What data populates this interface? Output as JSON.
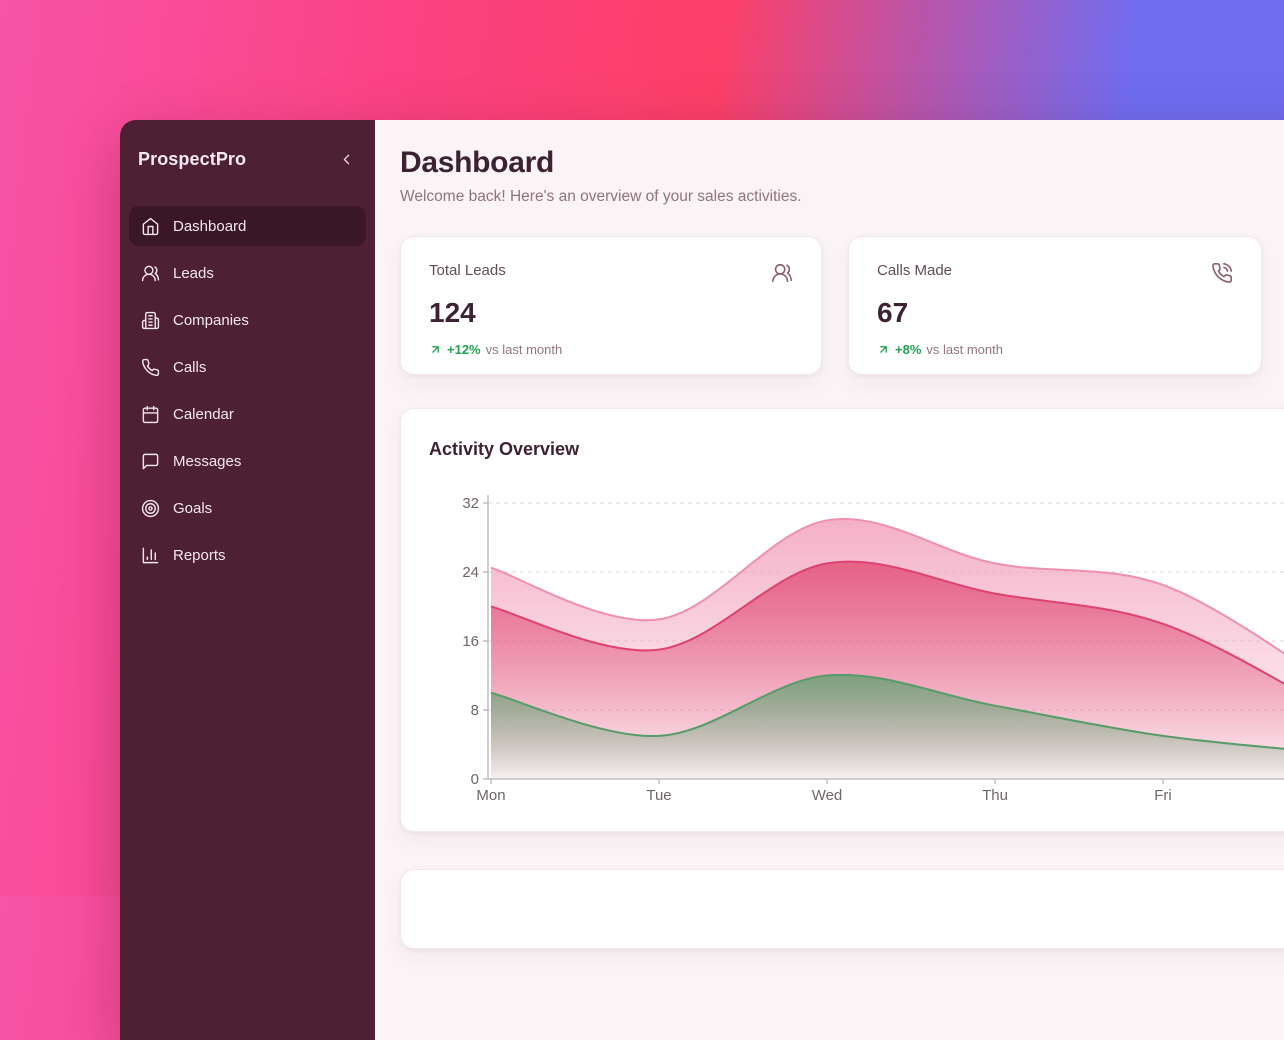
{
  "sidebar": {
    "brand": "ProspectPro",
    "collapse_icon": "chevron-left",
    "items": [
      {
        "label": "Dashboard",
        "icon": "home",
        "active": true
      },
      {
        "label": "Leads",
        "icon": "users",
        "active": false
      },
      {
        "label": "Companies",
        "icon": "building",
        "active": false
      },
      {
        "label": "Calls",
        "icon": "phone",
        "active": false
      },
      {
        "label": "Calendar",
        "icon": "calendar",
        "active": false
      },
      {
        "label": "Messages",
        "icon": "message-square",
        "active": false
      },
      {
        "label": "Goals",
        "icon": "target",
        "active": false
      },
      {
        "label": "Reports",
        "icon": "bar-chart",
        "active": false
      }
    ]
  },
  "header": {
    "title": "Dashboard",
    "subtitle": "Welcome back! Here's an overview of your sales activities."
  },
  "stat_cards": [
    {
      "label": "Total Leads",
      "value": "124",
      "trend": "+12%",
      "trend_note": "vs last month",
      "trend_direction": "up",
      "icon": "users"
    },
    {
      "label": "Calls Made",
      "value": "67",
      "trend": "+8%",
      "trend_note": "vs last month",
      "trend_direction": "up",
      "icon": "phone-call"
    }
  ],
  "chart_card": {
    "title": "Activity Overview"
  },
  "chart_data": {
    "type": "area",
    "title": "Activity Overview",
    "categories": [
      "Mon",
      "Tue",
      "Wed",
      "Thu",
      "Fri"
    ],
    "y_ticks": [
      0,
      8,
      16,
      24,
      32
    ],
    "ylim": [
      0,
      32
    ],
    "grid": "horizontal-dashed",
    "legend": "none",
    "note": "smooth overlapping gradient areas; curves continue past the right edge of the viewport",
    "series": [
      {
        "name": "area-light-pink",
        "color": "#f29fbc",
        "line_color": "#ee8fae",
        "values": [
          24.5,
          18.5,
          30,
          25,
          22.5
        ],
        "offscreen_next_value": 11
      },
      {
        "name": "area-rose",
        "color": "#e14e76",
        "line_color": "#dd4270",
        "values": [
          20,
          15,
          25,
          21.5,
          18
        ],
        "offscreen_next_value": 8
      },
      {
        "name": "area-green",
        "color": "#63a173",
        "line_color": "#559c68",
        "values": [
          10,
          5,
          12,
          8.5,
          5
        ],
        "offscreen_next_value": 3
      }
    ]
  },
  "colors": {
    "grad_0": "#f853a8",
    "grad_1": "#fb4282",
    "grad_2": "#fc3f67",
    "grad_3": "#6f6cf0",
    "sidebar_bg": "#4e2033",
    "sidebar_active_bg": "#3a1726",
    "sidebar_text": "#f5ebf0",
    "content_bg": "#faf4f6",
    "card_bg": "#ffffff",
    "card_border": "#f3e7ec",
    "heading_text": "#3c2232",
    "muted_text": "#8f7380",
    "stat_icon": "#8d5f71",
    "positive_green": "#21a050",
    "axis_text": "#6d6569"
  }
}
